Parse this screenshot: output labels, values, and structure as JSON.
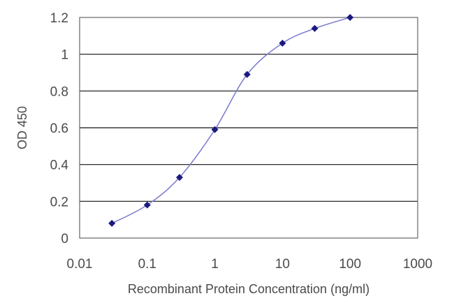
{
  "chart_data": {
    "type": "line",
    "title": "",
    "xlabel": "Recombinant Protein Concentration (ng/ml)",
    "ylabel": "OD 450",
    "x_scale": "log",
    "xlim": [
      0.01,
      1000
    ],
    "ylim": [
      0,
      1.2
    ],
    "x_ticks": [
      "0.01",
      "0.1",
      "1",
      "10",
      "100",
      "1000"
    ],
    "y_ticks": [
      "0",
      "0.2",
      "0.4",
      "0.6",
      "0.8",
      "1",
      "1.2"
    ],
    "grid": "horizontal",
    "legend": "none",
    "series": [
      {
        "x": [
          0.03,
          0.1,
          0.3,
          1,
          3,
          10,
          30,
          100
        ],
        "y": [
          0.08,
          0.18,
          0.33,
          0.59,
          0.89,
          1.06,
          1.14,
          1.2
        ]
      }
    ],
    "colors": {
      "line": "#8080d0",
      "marker": "#1a1a80",
      "grid": "#111111",
      "frame": "#666666"
    }
  }
}
